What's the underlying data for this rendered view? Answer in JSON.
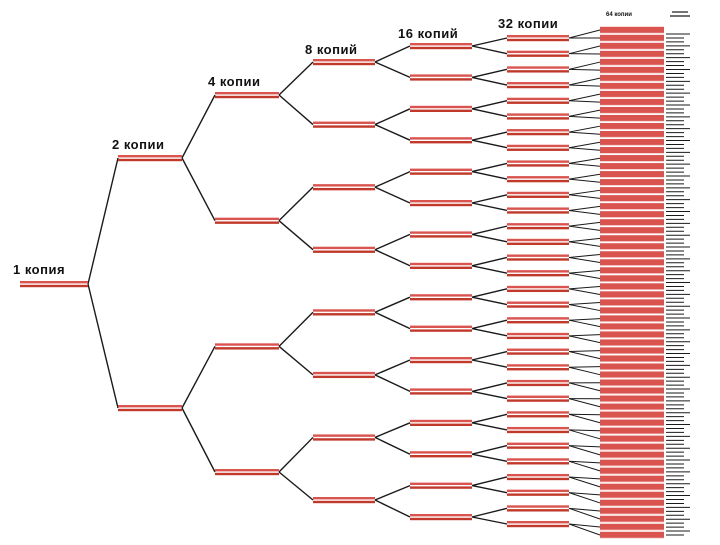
{
  "diagram": {
    "levels": [
      {
        "label": "1 копия",
        "count": 1
      },
      {
        "label": "2 копии",
        "count": 2
      },
      {
        "label": "4 копии",
        "count": 4
      },
      {
        "label": "8 копий",
        "count": 8
      },
      {
        "label": "16 копий",
        "count": 16
      },
      {
        "label": "32 копии",
        "count": 32
      },
      {
        "label": "64 копии",
        "count": 64
      }
    ],
    "colors": {
      "strand": "#d9534f",
      "strand_dark": "#c0392b",
      "branch": "#1a1a1a"
    }
  }
}
